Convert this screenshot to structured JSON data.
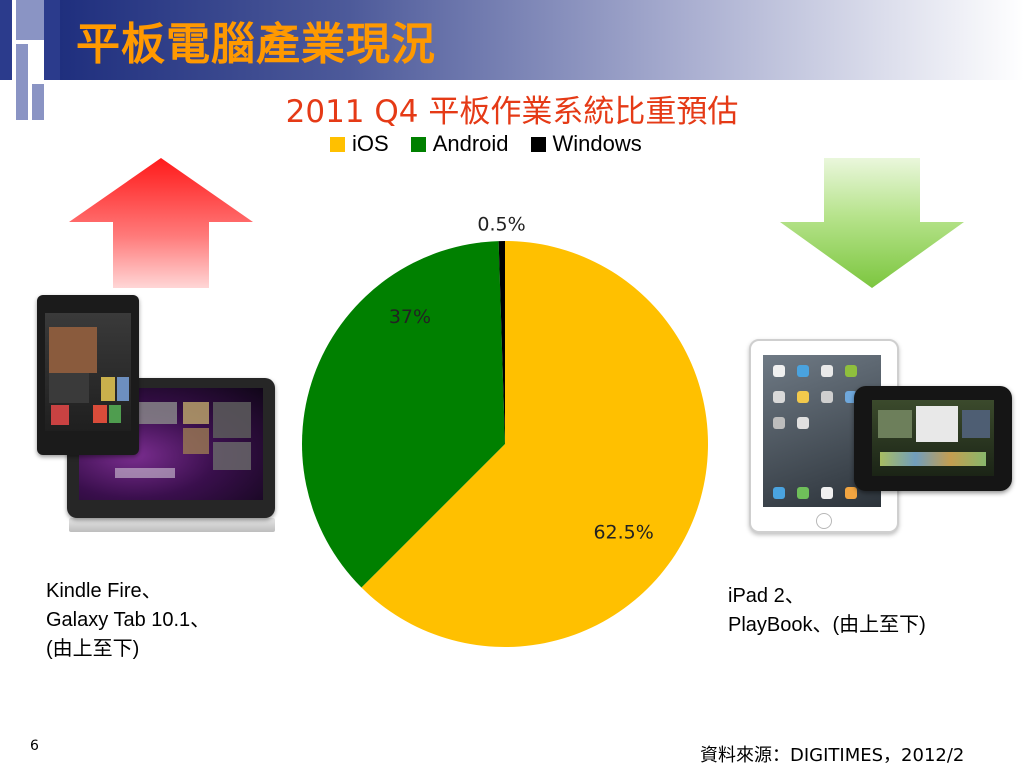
{
  "slide": {
    "title": "平板電腦產業現況",
    "number": "6",
    "source": "資料來源：DIGITIMES，2012/2"
  },
  "captions": {
    "left": [
      "Kindle Fire、",
      "Galaxy Tab 10.1、",
      "(由上至下)"
    ],
    "right": [
      "iPad 2、",
      "PlayBook、(由上至下)"
    ]
  },
  "colors": {
    "title": "#ff9900",
    "chart_title": "#e53a16",
    "arrow_up": "#ff2b2b",
    "arrow_down": "#8fd14f",
    "ios": "#ffc000",
    "android": "#008000",
    "windows": "#000000"
  },
  "chart_data": {
    "type": "pie",
    "title": "2011 Q4 平板作業系統比重預估",
    "legend_position": "top",
    "series": [
      {
        "name": "iOS",
        "value": 62.5,
        "label": "62.5%",
        "color": "#ffc000"
      },
      {
        "name": "Android",
        "value": 37,
        "label": "37%",
        "color": "#008000"
      },
      {
        "name": "Windows",
        "value": 0.5,
        "label": "0.5%",
        "color": "#000000"
      }
    ]
  }
}
